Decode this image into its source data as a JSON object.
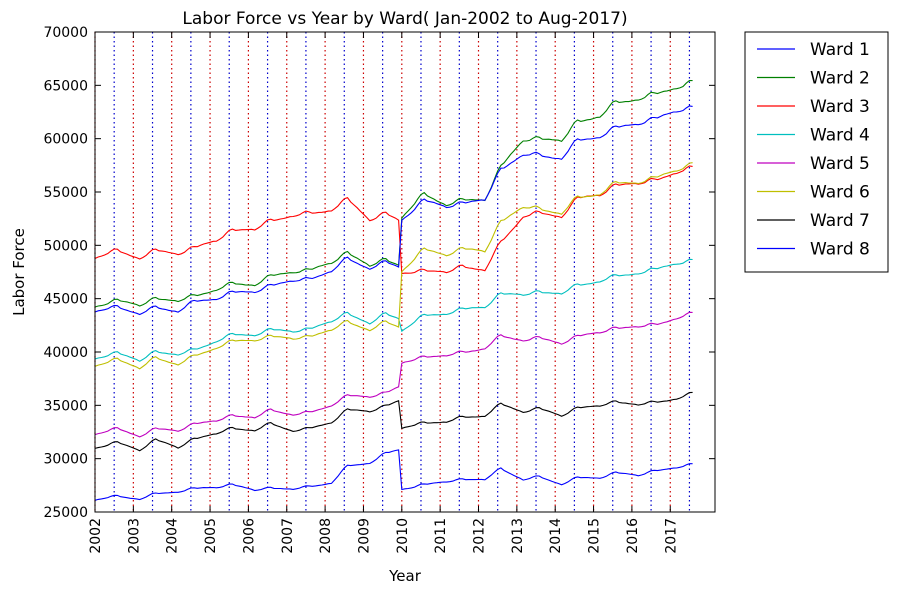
{
  "chart_data": {
    "type": "line",
    "title": "Labor Force vs Year by Ward( Jan-2002 to Aug-2017)",
    "xlabel": "Year",
    "ylabel": "Labor Force",
    "xlim": [
      "2002-01",
      "2018-03"
    ],
    "ylim": [
      25000,
      70000
    ],
    "y_ticks": [
      25000,
      30000,
      35000,
      40000,
      45000,
      50000,
      55000,
      60000,
      65000,
      70000
    ],
    "x_ticks": [
      "2002",
      "2003",
      "2004",
      "2005",
      "2006",
      "2007",
      "2008",
      "2009",
      "2010",
      "2011",
      "2012",
      "2013",
      "2014",
      "2015",
      "2016",
      "2017"
    ],
    "x_range": [
      "2002-01",
      "2017-08"
    ],
    "grid": false,
    "vertical_reference_lines": {
      "january": {
        "color": "#cc0000",
        "style": "dotted"
      },
      "july": {
        "color": "#0000cc",
        "style": "dotted"
      }
    },
    "legend_position": "outside-right",
    "series": [
      {
        "name": "Ward 1",
        "color": "#0000ff",
        "anchors": [
          [
            "2002-01",
            26100
          ],
          [
            "2002-08",
            26500
          ],
          [
            "2003-03",
            26200
          ],
          [
            "2003-08",
            26700
          ],
          [
            "2004-03",
            26900
          ],
          [
            "2004-08",
            27200
          ],
          [
            "2005-03",
            27300
          ],
          [
            "2005-08",
            27600
          ],
          [
            "2006-03",
            27000
          ],
          [
            "2006-08",
            27300
          ],
          [
            "2007-03",
            27100
          ],
          [
            "2007-08",
            27400
          ],
          [
            "2008-03",
            27700
          ],
          [
            "2008-08",
            29300
          ],
          [
            "2009-03",
            29600
          ],
          [
            "2009-08",
            30500
          ],
          [
            "2009-12",
            30800
          ],
          [
            "2010-01",
            27100
          ],
          [
            "2010-08",
            27600
          ],
          [
            "2011-03",
            27800
          ],
          [
            "2011-08",
            28100
          ],
          [
            "2012-03",
            28000
          ],
          [
            "2012-08",
            29100
          ],
          [
            "2013-03",
            28000
          ],
          [
            "2013-08",
            28300
          ],
          [
            "2014-03",
            27600
          ],
          [
            "2014-08",
            28200
          ],
          [
            "2015-03",
            28200
          ],
          [
            "2015-08",
            28700
          ],
          [
            "2016-03",
            28400
          ],
          [
            "2016-08",
            28900
          ],
          [
            "2017-03",
            29100
          ],
          [
            "2017-08",
            29500
          ]
        ]
      },
      {
        "name": "Ward 2",
        "color": "#008000",
        "anchors": [
          [
            "2002-01",
            44200
          ],
          [
            "2002-08",
            44900
          ],
          [
            "2003-03",
            44300
          ],
          [
            "2003-08",
            45100
          ],
          [
            "2004-03",
            44700
          ],
          [
            "2004-08",
            45300
          ],
          [
            "2005-03",
            45800
          ],
          [
            "2005-08",
            46400
          ],
          [
            "2006-03",
            46300
          ],
          [
            "2006-08",
            47100
          ],
          [
            "2007-03",
            47500
          ],
          [
            "2007-08",
            47700
          ],
          [
            "2008-03",
            48300
          ],
          [
            "2008-08",
            49400
          ],
          [
            "2009-03",
            48000
          ],
          [
            "2009-08",
            48700
          ],
          [
            "2009-12",
            48200
          ],
          [
            "2010-01",
            52600
          ],
          [
            "2010-08",
            54800
          ],
          [
            "2011-03",
            53800
          ],
          [
            "2011-08",
            54200
          ],
          [
            "2012-03",
            54300
          ],
          [
            "2012-08",
            57400
          ],
          [
            "2013-03",
            59800
          ],
          [
            "2013-08",
            60100
          ],
          [
            "2014-03",
            59700
          ],
          [
            "2014-08",
            61700
          ],
          [
            "2015-03",
            62000
          ],
          [
            "2015-08",
            63400
          ],
          [
            "2016-03",
            63700
          ],
          [
            "2016-08",
            64100
          ],
          [
            "2017-03",
            64800
          ],
          [
            "2017-08",
            65300
          ]
        ]
      },
      {
        "name": "Ward 3",
        "color": "#ff0000",
        "anchors": [
          [
            "2002-01",
            48800
          ],
          [
            "2002-08",
            49500
          ],
          [
            "2003-03",
            48800
          ],
          [
            "2003-08",
            49500
          ],
          [
            "2004-03",
            49200
          ],
          [
            "2004-08",
            49800
          ],
          [
            "2005-03",
            50400
          ],
          [
            "2005-08",
            51500
          ],
          [
            "2006-03",
            51400
          ],
          [
            "2006-08",
            52400
          ],
          [
            "2007-03",
            52700
          ],
          [
            "2007-08",
            53000
          ],
          [
            "2008-03",
            53300
          ],
          [
            "2008-08",
            54300
          ],
          [
            "2009-03",
            52400
          ],
          [
            "2009-08",
            53000
          ],
          [
            "2009-12",
            52300
          ],
          [
            "2010-01",
            47300
          ],
          [
            "2010-08",
            47700
          ],
          [
            "2011-03",
            47400
          ],
          [
            "2011-08",
            48100
          ],
          [
            "2012-03",
            47600
          ],
          [
            "2012-08",
            50300
          ],
          [
            "2013-03",
            52700
          ],
          [
            "2013-08",
            53000
          ],
          [
            "2014-03",
            52700
          ],
          [
            "2014-08",
            54400
          ],
          [
            "2015-03",
            54700
          ],
          [
            "2015-08",
            55700
          ],
          [
            "2016-03",
            55700
          ],
          [
            "2016-08",
            56200
          ],
          [
            "2017-03",
            56700
          ],
          [
            "2017-08",
            57300
          ]
        ]
      },
      {
        "name": "Ward 4",
        "color": "#00bfbf",
        "anchors": [
          [
            "2002-01",
            39300
          ],
          [
            "2002-08",
            40000
          ],
          [
            "2003-03",
            39100
          ],
          [
            "2003-08",
            40100
          ],
          [
            "2004-03",
            39700
          ],
          [
            "2004-08",
            40200
          ],
          [
            "2005-03",
            41000
          ],
          [
            "2005-08",
            41600
          ],
          [
            "2006-03",
            41600
          ],
          [
            "2006-08",
            42100
          ],
          [
            "2007-03",
            41900
          ],
          [
            "2007-08",
            42200
          ],
          [
            "2008-03",
            42800
          ],
          [
            "2008-08",
            43700
          ],
          [
            "2009-03",
            42600
          ],
          [
            "2009-08",
            43600
          ],
          [
            "2009-12",
            43200
          ],
          [
            "2010-01",
            42000
          ],
          [
            "2010-08",
            43400
          ],
          [
            "2011-03",
            43600
          ],
          [
            "2011-08",
            44000
          ],
          [
            "2012-03",
            44200
          ],
          [
            "2012-08",
            45500
          ],
          [
            "2013-03",
            45300
          ],
          [
            "2013-08",
            45700
          ],
          [
            "2014-03",
            45400
          ],
          [
            "2014-08",
            46300
          ],
          [
            "2015-03",
            46600
          ],
          [
            "2015-08",
            47100
          ],
          [
            "2016-03",
            47400
          ],
          [
            "2016-08",
            47700
          ],
          [
            "2017-03",
            48300
          ],
          [
            "2017-08",
            48600
          ]
        ]
      },
      {
        "name": "Ward 5",
        "color": "#bf00bf",
        "anchors": [
          [
            "2002-01",
            32300
          ],
          [
            "2002-08",
            32800
          ],
          [
            "2003-03",
            32100
          ],
          [
            "2003-08",
            32800
          ],
          [
            "2004-03",
            32600
          ],
          [
            "2004-08",
            33300
          ],
          [
            "2005-03",
            33500
          ],
          [
            "2005-08",
            34100
          ],
          [
            "2006-03",
            33800
          ],
          [
            "2006-08",
            34600
          ],
          [
            "2007-03",
            34100
          ],
          [
            "2007-08",
            34300
          ],
          [
            "2008-03",
            35000
          ],
          [
            "2008-08",
            35900
          ],
          [
            "2009-03",
            35800
          ],
          [
            "2009-08",
            36200
          ],
          [
            "2009-12",
            36700
          ],
          [
            "2010-01",
            38900
          ],
          [
            "2010-08",
            39600
          ],
          [
            "2011-03",
            39600
          ],
          [
            "2011-08",
            40000
          ],
          [
            "2012-03",
            40300
          ],
          [
            "2012-08",
            41500
          ],
          [
            "2013-03",
            41100
          ],
          [
            "2013-08",
            41300
          ],
          [
            "2014-03",
            40800
          ],
          [
            "2014-08",
            41500
          ],
          [
            "2015-03",
            41800
          ],
          [
            "2015-08",
            42300
          ],
          [
            "2016-03",
            42300
          ],
          [
            "2016-08",
            42600
          ],
          [
            "2017-03",
            43100
          ],
          [
            "2017-08",
            43600
          ]
        ]
      },
      {
        "name": "Ward 6",
        "color": "#bfbf00",
        "anchors": [
          [
            "2002-01",
            38600
          ],
          [
            "2002-08",
            39400
          ],
          [
            "2003-03",
            38400
          ],
          [
            "2003-08",
            39500
          ],
          [
            "2004-03",
            38800
          ],
          [
            "2004-08",
            39600
          ],
          [
            "2005-03",
            40400
          ],
          [
            "2005-08",
            41000
          ],
          [
            "2006-03",
            41100
          ],
          [
            "2006-08",
            41500
          ],
          [
            "2007-03",
            41200
          ],
          [
            "2007-08",
            41500
          ],
          [
            "2008-03",
            42000
          ],
          [
            "2008-08",
            42900
          ],
          [
            "2009-03",
            42000
          ],
          [
            "2009-08",
            42800
          ],
          [
            "2009-12",
            42400
          ],
          [
            "2010-01",
            47600
          ],
          [
            "2010-08",
            49600
          ],
          [
            "2011-03",
            49100
          ],
          [
            "2011-08",
            49700
          ],
          [
            "2012-03",
            49400
          ],
          [
            "2012-08",
            52300
          ],
          [
            "2013-03",
            53500
          ],
          [
            "2013-08",
            53500
          ],
          [
            "2014-03",
            52900
          ],
          [
            "2014-08",
            54500
          ],
          [
            "2015-03",
            54800
          ],
          [
            "2015-08",
            55800
          ],
          [
            "2016-03",
            55900
          ],
          [
            "2016-08",
            56300
          ],
          [
            "2017-03",
            57000
          ],
          [
            "2017-08",
            57700
          ]
        ]
      },
      {
        "name": "Ward 7",
        "color": "#000000",
        "anchors": [
          [
            "2002-01",
            31000
          ],
          [
            "2002-08",
            31500
          ],
          [
            "2003-03",
            30800
          ],
          [
            "2003-08",
            31800
          ],
          [
            "2004-03",
            31000
          ],
          [
            "2004-08",
            31900
          ],
          [
            "2005-03",
            32300
          ],
          [
            "2005-08",
            32900
          ],
          [
            "2006-03",
            32600
          ],
          [
            "2006-08",
            33300
          ],
          [
            "2007-03",
            32600
          ],
          [
            "2007-08",
            32800
          ],
          [
            "2008-03",
            33400
          ],
          [
            "2008-08",
            34600
          ],
          [
            "2009-03",
            34400
          ],
          [
            "2009-08",
            35000
          ],
          [
            "2009-12",
            35400
          ],
          [
            "2010-01",
            32800
          ],
          [
            "2010-08",
            33400
          ],
          [
            "2011-03",
            33400
          ],
          [
            "2011-08",
            33900
          ],
          [
            "2012-03",
            34000
          ],
          [
            "2012-08",
            35100
          ],
          [
            "2013-03",
            34400
          ],
          [
            "2013-08",
            34700
          ],
          [
            "2014-03",
            34000
          ],
          [
            "2014-08",
            34800
          ],
          [
            "2015-03",
            34900
          ],
          [
            "2015-08",
            35400
          ],
          [
            "2016-03",
            35000
          ],
          [
            "2016-08",
            35300
          ],
          [
            "2017-03",
            35600
          ],
          [
            "2017-08",
            36100
          ]
        ]
      },
      {
        "name": "Ward 8",
        "color": "#0000ff",
        "anchors": [
          [
            "2002-01",
            43700
          ],
          [
            "2002-08",
            44300
          ],
          [
            "2003-03",
            43500
          ],
          [
            "2003-08",
            44200
          ],
          [
            "2004-03",
            43800
          ],
          [
            "2004-08",
            44700
          ],
          [
            "2005-03",
            45000
          ],
          [
            "2005-08",
            45600
          ],
          [
            "2006-03",
            45600
          ],
          [
            "2006-08",
            46300
          ],
          [
            "2007-03",
            46600
          ],
          [
            "2007-08",
            46900
          ],
          [
            "2008-03",
            47500
          ],
          [
            "2008-08",
            48800
          ],
          [
            "2009-03",
            47800
          ],
          [
            "2009-08",
            48400
          ],
          [
            "2009-12",
            48000
          ],
          [
            "2010-01",
            52400
          ],
          [
            "2010-08",
            54200
          ],
          [
            "2011-03",
            53600
          ],
          [
            "2011-08",
            54000
          ],
          [
            "2012-03",
            54200
          ],
          [
            "2012-08",
            57200
          ],
          [
            "2013-03",
            58400
          ],
          [
            "2013-08",
            58500
          ],
          [
            "2014-03",
            58100
          ],
          [
            "2014-08",
            59800
          ],
          [
            "2015-03",
            60200
          ],
          [
            "2015-08",
            61000
          ],
          [
            "2016-03",
            61400
          ],
          [
            "2016-08",
            61900
          ],
          [
            "2017-03",
            62500
          ],
          [
            "2017-08",
            63000
          ]
        ]
      }
    ]
  }
}
